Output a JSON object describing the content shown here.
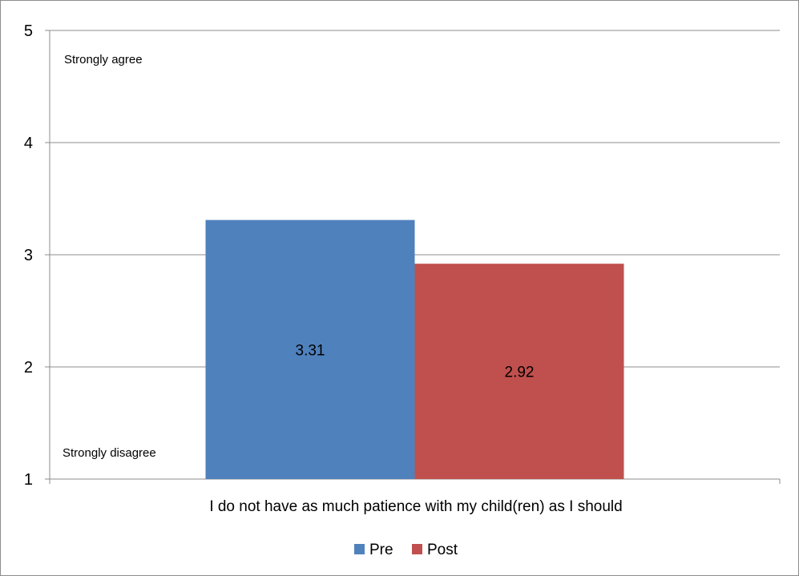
{
  "chart_data": {
    "type": "bar",
    "categories": [
      "I do not have as much patience with my child(ren) as I should"
    ],
    "series": [
      {
        "name": "Pre",
        "values": [
          3.31
        ],
        "color": "#4f81bd"
      },
      {
        "name": "Post",
        "values": [
          2.92
        ],
        "color": "#c0504d"
      }
    ],
    "ylim": [
      1,
      5
    ],
    "yticks": [
      1,
      2,
      3,
      4,
      5
    ],
    "y_tick_labels": [
      "1",
      "2",
      "3",
      "4",
      "5"
    ],
    "data_labels": [
      "3.31",
      "2.92"
    ],
    "annotations": {
      "top": "Strongly agree",
      "bottom": "Strongly disagree"
    },
    "grid": true,
    "legend_position": "bottom",
    "gridline_color": "#8c8c8c"
  }
}
